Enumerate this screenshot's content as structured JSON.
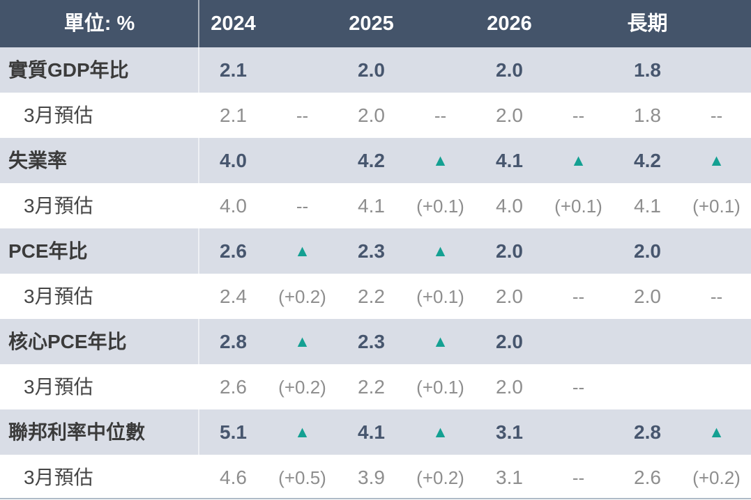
{
  "colors": {
    "header_bg": "#44546A",
    "band_bg": "#D9DDE6",
    "value_dark": "#47566E",
    "muted_gray": "#8E8E8E",
    "up_teal": "#14A092",
    "bottom_line": "#AEBBC7"
  },
  "icons": {
    "up_triangle": "▲"
  },
  "chart_data": {
    "type": "table",
    "unit_label": "單位: %",
    "columns": [
      "2024",
      "2025",
      "2026",
      "長期"
    ],
    "rows": [
      {
        "label": "實質GDP年比",
        "type": "current",
        "cells": [
          {
            "value": "2.1",
            "change": ""
          },
          {
            "value": "2.0",
            "change": ""
          },
          {
            "value": "2.0",
            "change": ""
          },
          {
            "value": "1.8",
            "change": ""
          }
        ]
      },
      {
        "label": "3月預估",
        "type": "previous",
        "cells": [
          {
            "value": "2.1",
            "change": "--"
          },
          {
            "value": "2.0",
            "change": "--"
          },
          {
            "value": "2.0",
            "change": "--"
          },
          {
            "value": "1.8",
            "change": "--"
          }
        ]
      },
      {
        "label": "失業率",
        "type": "current",
        "cells": [
          {
            "value": "4.0",
            "change": ""
          },
          {
            "value": "4.2",
            "change": "▲"
          },
          {
            "value": "4.1",
            "change": "▲"
          },
          {
            "value": "4.2",
            "change": "▲"
          }
        ]
      },
      {
        "label": "3月預估",
        "type": "previous",
        "cells": [
          {
            "value": "4.0",
            "change": "--"
          },
          {
            "value": "4.1",
            "change": "(+0.1)"
          },
          {
            "value": "4.0",
            "change": "(+0.1)"
          },
          {
            "value": "4.1",
            "change": "(+0.1)"
          }
        ]
      },
      {
        "label": "PCE年比",
        "type": "current",
        "cells": [
          {
            "value": "2.6",
            "change": "▲"
          },
          {
            "value": "2.3",
            "change": "▲"
          },
          {
            "value": "2.0",
            "change": ""
          },
          {
            "value": "2.0",
            "change": ""
          }
        ]
      },
      {
        "label": "3月預估",
        "type": "previous",
        "cells": [
          {
            "value": "2.4",
            "change": "(+0.2)"
          },
          {
            "value": "2.2",
            "change": "(+0.1)"
          },
          {
            "value": "2.0",
            "change": "--"
          },
          {
            "value": "2.0",
            "change": "--"
          }
        ]
      },
      {
        "label": "核心PCE年比",
        "type": "current",
        "cells": [
          {
            "value": "2.8",
            "change": "▲"
          },
          {
            "value": "2.3",
            "change": "▲"
          },
          {
            "value": "2.0",
            "change": ""
          },
          {
            "value": "",
            "change": ""
          }
        ]
      },
      {
        "label": "3月預估",
        "type": "previous",
        "cells": [
          {
            "value": "2.6",
            "change": "(+0.2)"
          },
          {
            "value": "2.2",
            "change": "(+0.1)"
          },
          {
            "value": "2.0",
            "change": "--"
          },
          {
            "value": "",
            "change": ""
          }
        ]
      },
      {
        "label": "聯邦利率中位數",
        "type": "current",
        "cells": [
          {
            "value": "5.1",
            "change": "▲"
          },
          {
            "value": "4.1",
            "change": "▲"
          },
          {
            "value": "3.1",
            "change": ""
          },
          {
            "value": "2.8",
            "change": "▲"
          }
        ]
      },
      {
        "label": "3月預估",
        "type": "previous",
        "cells": [
          {
            "value": "4.6",
            "change": "(+0.5)"
          },
          {
            "value": "3.9",
            "change": "(+0.2)"
          },
          {
            "value": "3.1",
            "change": "--"
          },
          {
            "value": "2.6",
            "change": "(+0.2)"
          }
        ]
      }
    ]
  }
}
